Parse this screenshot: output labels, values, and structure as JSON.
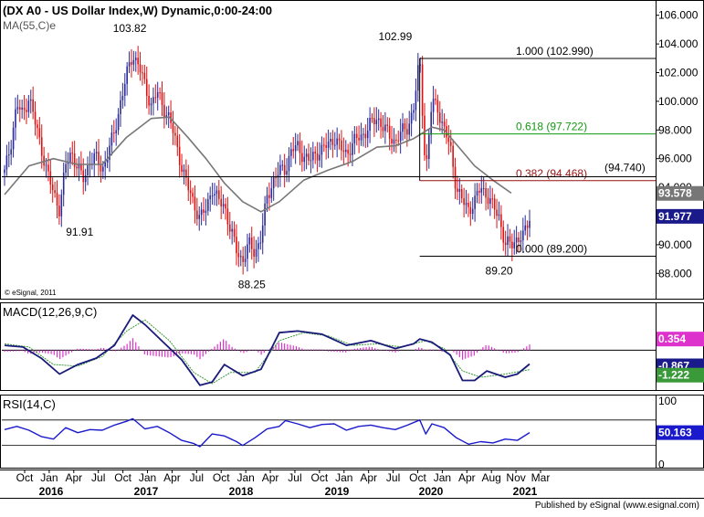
{
  "header": {
    "title": "(DX A0 - US Dollar Index,W) Dynamic,0:00-24:00",
    "ma_label": "MA(55,C)e",
    "copyright": "© eSignal, 2011"
  },
  "footer": {
    "published": "Published by eSignal (www.esignal.com)"
  },
  "colors": {
    "up": "#2a2a9a",
    "down": "#dd1111",
    "ma": "#777777",
    "macd": "#1a1a7a",
    "signal": "#3a9a3a",
    "hist": "#dd33cc",
    "rsi": "#1a1acc",
    "fib_618": "#119911",
    "fib_382": "#991111"
  },
  "chart_data": [
    {
      "type": "candlestick",
      "title": "(DX A0 - US Dollar Index,W) Dynamic,0:00-24:00",
      "ylim": [
        87.0,
        106.3
      ],
      "y_ticks": [
        "88.000",
        "90.000",
        "92.000",
        "94.000",
        "96.000",
        "98.000",
        "100.000",
        "102.000",
        "104.000",
        "106.000"
      ],
      "x_ticks": [
        "Oct",
        "Jan",
        "Apr",
        "Jul",
        "Oct",
        "Jan",
        "Apr",
        "Jul",
        "Oct",
        "Jan",
        "Apr",
        "Jul",
        "Oct",
        "Jan",
        "Apr",
        "Jul",
        "Oct",
        "Jan",
        "Apr",
        "Aug",
        "Nov",
        "Mar"
      ],
      "x_years": [
        "2016",
        "2017",
        "2018",
        "2019",
        "2020",
        "2021"
      ],
      "price_path": [
        {
          "t": 0,
          "v": 95.0
        },
        {
          "t": 1,
          "v": 97.0
        },
        {
          "t": 2,
          "v": 99.8
        },
        {
          "t": 3,
          "v": 99.0
        },
        {
          "t": 4,
          "v": 100.4
        },
        {
          "t": 5,
          "v": 98.5
        },
        {
          "t": 6,
          "v": 96.8
        },
        {
          "t": 7,
          "v": 95.0
        },
        {
          "t": 8,
          "v": 93.6
        },
        {
          "t": 9,
          "v": 92.5
        },
        {
          "t": 10,
          "v": 95.5
        },
        {
          "t": 11,
          "v": 96.5
        },
        {
          "t": 12,
          "v": 95.3
        },
        {
          "t": 13,
          "v": 94.5
        },
        {
          "t": 14,
          "v": 96.0
        },
        {
          "t": 15,
          "v": 96.0
        },
        {
          "t": 16,
          "v": 95.2
        },
        {
          "t": 17,
          "v": 96.5
        },
        {
          "t": 18,
          "v": 97.8
        },
        {
          "t": 19,
          "v": 100.0
        },
        {
          "t": 20,
          "v": 101.8
        },
        {
          "t": 21,
          "v": 103.3
        },
        {
          "t": 22,
          "v": 102.5
        },
        {
          "t": 23,
          "v": 101.0
        },
        {
          "t": 24,
          "v": 99.8
        },
        {
          "t": 25,
          "v": 100.6
        },
        {
          "t": 26,
          "v": 99.6
        },
        {
          "t": 27,
          "v": 98.8
        },
        {
          "t": 28,
          "v": 97.2
        },
        {
          "t": 29,
          "v": 95.5
        },
        {
          "t": 30,
          "v": 94.0
        },
        {
          "t": 31,
          "v": 92.9
        },
        {
          "t": 32,
          "v": 91.8
        },
        {
          "t": 33,
          "v": 92.5
        },
        {
          "t": 34,
          "v": 94.0
        },
        {
          "t": 35,
          "v": 93.0
        },
        {
          "t": 36,
          "v": 92.8
        },
        {
          "t": 37,
          "v": 91.0
        },
        {
          "t": 38,
          "v": 89.6
        },
        {
          "t": 39,
          "v": 88.9
        },
        {
          "t": 40,
          "v": 90.0
        },
        {
          "t": 41,
          "v": 89.5
        },
        {
          "t": 42,
          "v": 90.5
        },
        {
          "t": 43,
          "v": 93.3
        },
        {
          "t": 44,
          "v": 94.5
        },
        {
          "t": 45,
          "v": 95.1
        },
        {
          "t": 46,
          "v": 95.3
        },
        {
          "t": 47,
          "v": 96.6
        },
        {
          "t": 48,
          "v": 96.8
        },
        {
          "t": 49,
          "v": 96.2
        },
        {
          "t": 50,
          "v": 95.8
        },
        {
          "t": 51,
          "v": 96.4
        },
        {
          "t": 52,
          "v": 96.6
        },
        {
          "t": 53,
          "v": 97.0
        },
        {
          "t": 54,
          "v": 97.5
        },
        {
          "t": 55,
          "v": 96.7
        },
        {
          "t": 56,
          "v": 96.4
        },
        {
          "t": 57,
          "v": 97.0
        },
        {
          "t": 58,
          "v": 97.5
        },
        {
          "t": 59,
          "v": 97.8
        },
        {
          "t": 60,
          "v": 98.4
        },
        {
          "t": 61,
          "v": 98.9
        },
        {
          "t": 62,
          "v": 98.2
        },
        {
          "t": 63,
          "v": 97.6
        },
        {
          "t": 64,
          "v": 97.2
        },
        {
          "t": 65,
          "v": 97.8
        },
        {
          "t": 66,
          "v": 98.2
        },
        {
          "t": 67,
          "v": 99.5
        },
        {
          "t": 68,
          "v": 102.99
        },
        {
          "t": 69,
          "v": 95.0
        },
        {
          "t": 70,
          "v": 100.0
        },
        {
          "t": 71,
          "v": 99.5
        },
        {
          "t": 72,
          "v": 98.0
        },
        {
          "t": 73,
          "v": 96.8
        },
        {
          "t": 74,
          "v": 94.0
        },
        {
          "t": 75,
          "v": 93.0
        },
        {
          "t": 76,
          "v": 92.5
        },
        {
          "t": 77,
          "v": 93.0
        },
        {
          "t": 78,
          "v": 94.0
        },
        {
          "t": 79,
          "v": 93.5
        },
        {
          "t": 80,
          "v": 92.6
        },
        {
          "t": 81,
          "v": 92.0
        },
        {
          "t": 82,
          "v": 90.0
        },
        {
          "t": 83,
          "v": 90.0
        },
        {
          "t": 84,
          "v": 90.5
        },
        {
          "t": 85,
          "v": 90.5
        },
        {
          "t": 86,
          "v": 91.977
        }
      ],
      "moving_average_55": [
        {
          "t": 0,
          "v": 93.5
        },
        {
          "t": 4,
          "v": 95.5
        },
        {
          "t": 8,
          "v": 96.0
        },
        {
          "t": 12,
          "v": 95.6
        },
        {
          "t": 16,
          "v": 95.6
        },
        {
          "t": 20,
          "v": 97.5
        },
        {
          "t": 24,
          "v": 98.8
        },
        {
          "t": 27,
          "v": 98.9
        },
        {
          "t": 30,
          "v": 97.5
        },
        {
          "t": 33,
          "v": 96.0
        },
        {
          "t": 36,
          "v": 94.3
        },
        {
          "t": 39,
          "v": 93.0
        },
        {
          "t": 42,
          "v": 92.3
        },
        {
          "t": 45,
          "v": 93.0
        },
        {
          "t": 49,
          "v": 94.5
        },
        {
          "t": 53,
          "v": 95.2
        },
        {
          "t": 57,
          "v": 95.8
        },
        {
          "t": 61,
          "v": 96.8
        },
        {
          "t": 64,
          "v": 96.9
        },
        {
          "t": 67,
          "v": 97.4
        },
        {
          "t": 70,
          "v": 98.2
        },
        {
          "t": 72,
          "v": 98.0
        },
        {
          "t": 74,
          "v": 97.0
        },
        {
          "t": 77,
          "v": 95.5
        },
        {
          "t": 80,
          "v": 94.5
        },
        {
          "t": 83,
          "v": 93.6
        }
      ],
      "annotations": [
        {
          "label": "103.82",
          "value": 103.82
        },
        {
          "label": "91.91",
          "value": 91.91
        },
        {
          "label": "88.25",
          "value": 88.25
        },
        {
          "label": "102.99",
          "value": 102.99
        },
        {
          "label": "89.20",
          "value": 89.2
        }
      ],
      "fib_levels": [
        {
          "label": "1.000 (102.990)",
          "value": 102.99,
          "color": "#000000"
        },
        {
          "label": "0.618 (97.722)",
          "value": 97.722,
          "color": "#119911"
        },
        {
          "label": "0.382 (94.468)",
          "value": 94.468,
          "color": "#991111"
        },
        {
          "label": "0.000 (89.200)",
          "value": 89.2,
          "color": "#000000"
        }
      ],
      "horizontal_level": {
        "label": "(94.740)",
        "value": 94.74
      },
      "last_values": [
        {
          "label": "93.578",
          "value": 93.578
        },
        {
          "label": "91.977",
          "value": 91.977
        }
      ]
    },
    {
      "type": "line",
      "title": "MACD(12,26,9,C)",
      "ylim": [
        -2.5,
        3.0
      ],
      "macd_path": [
        {
          "t": 0,
          "v": 0.3
        },
        {
          "t": 3,
          "v": 0.2
        },
        {
          "t": 6,
          "v": -0.5
        },
        {
          "t": 9,
          "v": -1.5
        },
        {
          "t": 12,
          "v": -0.9
        },
        {
          "t": 15,
          "v": -0.5
        },
        {
          "t": 18,
          "v": 0.3
        },
        {
          "t": 21,
          "v": 2.2
        },
        {
          "t": 23,
          "v": 1.6
        },
        {
          "t": 26,
          "v": 0.5
        },
        {
          "t": 29,
          "v": -0.6
        },
        {
          "t": 32,
          "v": -2.2
        },
        {
          "t": 34,
          "v": -2.0
        },
        {
          "t": 36,
          "v": -0.9
        },
        {
          "t": 39,
          "v": -1.6
        },
        {
          "t": 42,
          "v": -1.2
        },
        {
          "t": 45,
          "v": 1.1
        },
        {
          "t": 48,
          "v": 1.2
        },
        {
          "t": 52,
          "v": 1.0
        },
        {
          "t": 56,
          "v": 0.3
        },
        {
          "t": 60,
          "v": 0.6
        },
        {
          "t": 64,
          "v": 0.1
        },
        {
          "t": 67,
          "v": 0.4
        },
        {
          "t": 68,
          "v": 0.7
        },
        {
          "t": 70,
          "v": 0.5
        },
        {
          "t": 73,
          "v": -0.3
        },
        {
          "t": 75,
          "v": -1.9
        },
        {
          "t": 77,
          "v": -1.9
        },
        {
          "t": 79,
          "v": -1.3
        },
        {
          "t": 82,
          "v": -1.7
        },
        {
          "t": 84,
          "v": -1.5
        },
        {
          "t": 86,
          "v": -0.867
        }
      ],
      "signal_path": [
        {
          "t": 0,
          "v": 0.4
        },
        {
          "t": 4,
          "v": 0.2
        },
        {
          "t": 8,
          "v": -0.9
        },
        {
          "t": 12,
          "v": -1.0
        },
        {
          "t": 16,
          "v": -0.4
        },
        {
          "t": 20,
          "v": 1.2
        },
        {
          "t": 23,
          "v": 1.9
        },
        {
          "t": 27,
          "v": 0.6
        },
        {
          "t": 31,
          "v": -1.4
        },
        {
          "t": 34,
          "v": -2.1
        },
        {
          "t": 37,
          "v": -1.4
        },
        {
          "t": 41,
          "v": -1.4
        },
        {
          "t": 45,
          "v": 0.6
        },
        {
          "t": 49,
          "v": 1.1
        },
        {
          "t": 53,
          "v": 0.9
        },
        {
          "t": 57,
          "v": 0.3
        },
        {
          "t": 61,
          "v": 0.4
        },
        {
          "t": 65,
          "v": 0.2
        },
        {
          "t": 69,
          "v": 0.6
        },
        {
          "t": 72,
          "v": 0.1
        },
        {
          "t": 75,
          "v": -1.3
        },
        {
          "t": 78,
          "v": -1.7
        },
        {
          "t": 82,
          "v": -1.5
        },
        {
          "t": 86,
          "v": -1.222
        }
      ],
      "last_values": [
        {
          "label": "0.354",
          "value": 0.354
        },
        {
          "label": "-0.867",
          "value": -0.867
        },
        {
          "label": "-1.222",
          "value": -1.222
        }
      ]
    },
    {
      "type": "line",
      "title": "RSI(14,C)",
      "ylim": [
        -5,
        110
      ],
      "y_ticks": [
        "100",
        "0"
      ],
      "rsi_path": [
        {
          "t": 0,
          "v": 55
        },
        {
          "t": 2,
          "v": 60
        },
        {
          "t": 4,
          "v": 54
        },
        {
          "t": 6,
          "v": 44
        },
        {
          "t": 8,
          "v": 40
        },
        {
          "t": 10,
          "v": 58
        },
        {
          "t": 12,
          "v": 50
        },
        {
          "t": 14,
          "v": 55
        },
        {
          "t": 16,
          "v": 54
        },
        {
          "t": 18,
          "v": 62
        },
        {
          "t": 20,
          "v": 68
        },
        {
          "t": 21,
          "v": 72
        },
        {
          "t": 23,
          "v": 56
        },
        {
          "t": 25,
          "v": 60
        },
        {
          "t": 27,
          "v": 50
        },
        {
          "t": 29,
          "v": 38
        },
        {
          "t": 31,
          "v": 33
        },
        {
          "t": 32,
          "v": 28
        },
        {
          "t": 34,
          "v": 48
        },
        {
          "t": 36,
          "v": 45
        },
        {
          "t": 38,
          "v": 36
        },
        {
          "t": 39,
          "v": 30
        },
        {
          "t": 41,
          "v": 42
        },
        {
          "t": 43,
          "v": 56
        },
        {
          "t": 45,
          "v": 60
        },
        {
          "t": 46,
          "v": 69
        },
        {
          "t": 48,
          "v": 64
        },
        {
          "t": 50,
          "v": 58
        },
        {
          "t": 52,
          "v": 63
        },
        {
          "t": 54,
          "v": 64
        },
        {
          "t": 56,
          "v": 54
        },
        {
          "t": 58,
          "v": 60
        },
        {
          "t": 60,
          "v": 62
        },
        {
          "t": 62,
          "v": 58
        },
        {
          "t": 64,
          "v": 55
        },
        {
          "t": 66,
          "v": 62
        },
        {
          "t": 68,
          "v": 70
        },
        {
          "t": 69,
          "v": 48
        },
        {
          "t": 70,
          "v": 64
        },
        {
          "t": 72,
          "v": 58
        },
        {
          "t": 74,
          "v": 42
        },
        {
          "t": 76,
          "v": 32
        },
        {
          "t": 78,
          "v": 36
        },
        {
          "t": 80,
          "v": 34
        },
        {
          "t": 82,
          "v": 40
        },
        {
          "t": 84,
          "v": 38
        },
        {
          "t": 86,
          "v": 50.163
        }
      ],
      "last_values": [
        {
          "label": "50.163",
          "value": 50.163
        }
      ]
    }
  ]
}
